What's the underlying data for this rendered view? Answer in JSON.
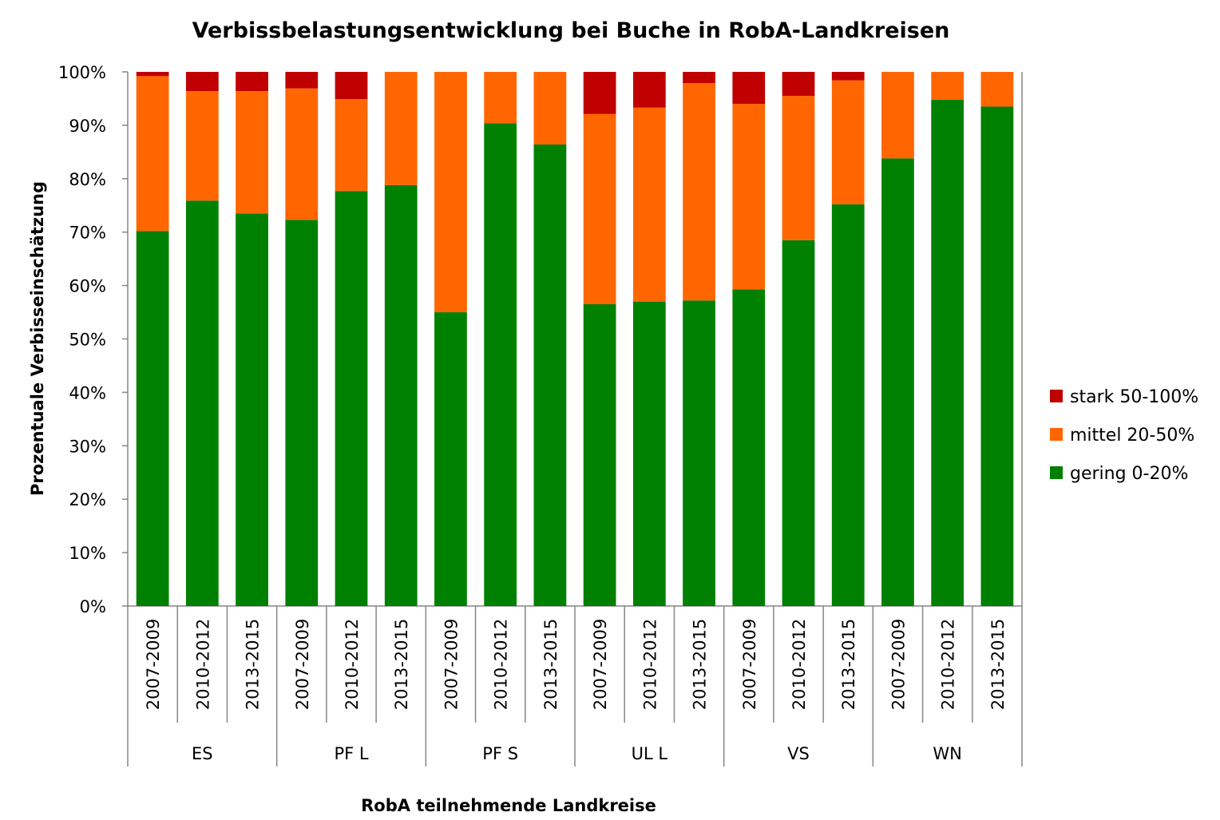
{
  "chart_data": {
    "type": "bar",
    "stacked": true,
    "stacked_percent": true,
    "title": "Verbissbelastungsentwicklung bei Buche in RobA-Landkreisen",
    "ylabel": "Prozentuale Verbisseinschätzung",
    "xlabel": "RobA teilnehmende Landkreise",
    "ylim": [
      0,
      100
    ],
    "y_ticks": [
      "0%",
      "10%",
      "20%",
      "30%",
      "40%",
      "50%",
      "60%",
      "70%",
      "80%",
      "90%",
      "100%"
    ],
    "grid": false,
    "legend_position": "right",
    "groups": [
      {
        "name": "ES",
        "categories": [
          "2007-2009",
          "2010-2012",
          "2013-2015"
        ]
      },
      {
        "name": "PF L",
        "categories": [
          "2007-2009",
          "2010-2012",
          "2013-2015"
        ]
      },
      {
        "name": "PF S",
        "categories": [
          "2007-2009",
          "2010-2012",
          "2013-2015"
        ]
      },
      {
        "name": "UL L",
        "categories": [
          "2007-2009",
          "2010-2012",
          "2013-2015"
        ]
      },
      {
        "name": "VS",
        "categories": [
          "2007-2009",
          "2010-2012",
          "2013-2015"
        ]
      },
      {
        "name": "WN",
        "categories": [
          "2007-2009",
          "2010-2012",
          "2013-2015"
        ]
      }
    ],
    "series": [
      {
        "name": "gering 0-20%",
        "color": "#008000",
        "values": [
          70.2,
          75.9,
          73.5,
          72.3,
          77.7,
          78.8,
          55.0,
          90.4,
          86.4,
          56.5,
          57.0,
          57.2,
          59.3,
          68.5,
          75.2,
          83.8,
          94.8,
          93.5
        ]
      },
      {
        "name": "mittel 20-50%",
        "color": "#FF6600",
        "values": [
          29.0,
          20.5,
          22.9,
          24.6,
          17.2,
          21.2,
          45.0,
          9.6,
          13.6,
          35.6,
          36.3,
          40.7,
          34.7,
          27.0,
          23.2,
          16.2,
          5.2,
          6.5
        ]
      },
      {
        "name": "stark 50-100%",
        "color": "#C00000",
        "values": [
          0.8,
          3.6,
          3.6,
          3.1,
          5.1,
          0.0,
          0.0,
          0.0,
          0.0,
          7.9,
          6.7,
          2.1,
          6.0,
          4.5,
          1.6,
          0.0,
          0.0,
          0.0
        ]
      }
    ]
  }
}
